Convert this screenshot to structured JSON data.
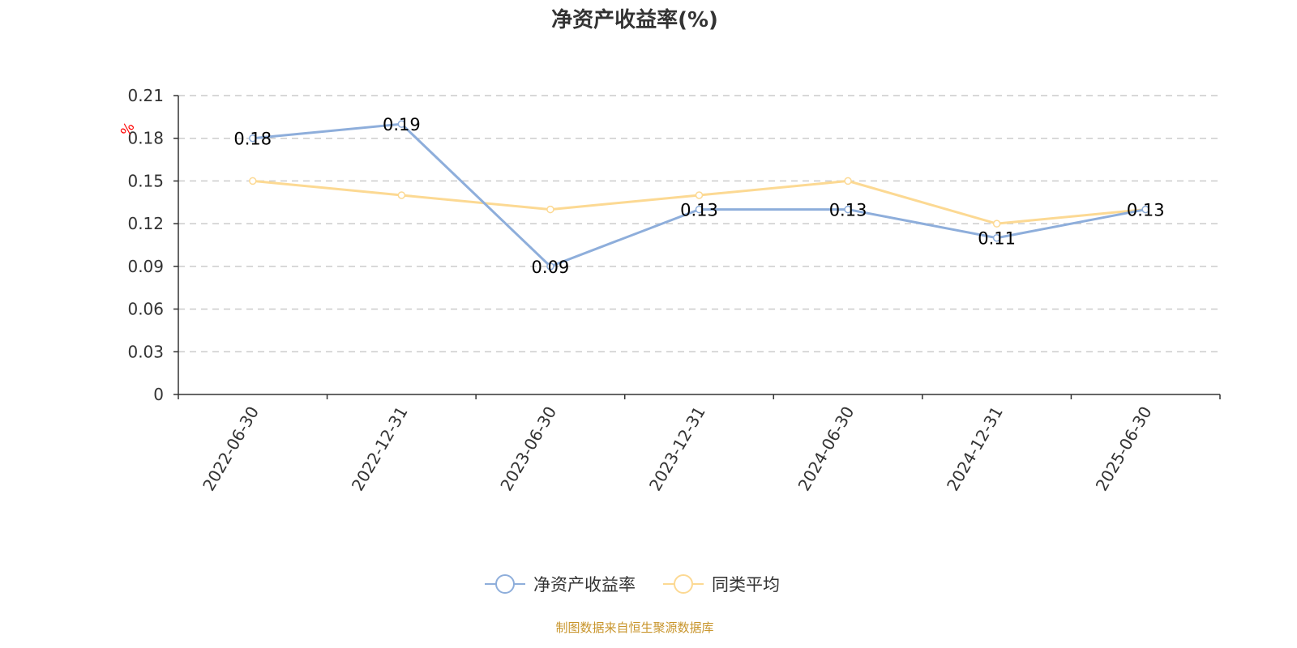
{
  "chart_data": {
    "type": "line",
    "title": "净资产收益率(%)",
    "ylabel": "%",
    "xlabel": "",
    "categories": [
      "2022-06-30",
      "2022-12-31",
      "2023-06-30",
      "2023-12-31",
      "2024-06-30",
      "2024-12-31",
      "2025-06-30"
    ],
    "ylim": [
      0,
      0.21
    ],
    "yticks": [
      "0",
      "0.03",
      "0.06",
      "0.09",
      "0.12",
      "0.15",
      "0.18",
      "0.21"
    ],
    "grid": true,
    "legend_position": "bottom",
    "series": [
      {
        "name": "净资产收益率",
        "color": "#8eaedb",
        "values": [
          0.18,
          0.19,
          0.09,
          0.13,
          0.13,
          0.11,
          0.13
        ],
        "labels": true
      },
      {
        "name": "同类平均",
        "color": "#fcd993",
        "values": [
          0.15,
          0.14,
          0.13,
          0.14,
          0.15,
          0.12,
          0.13
        ],
        "labels": false
      }
    ]
  },
  "footer": "制图数据来自恒生聚源数据库",
  "ylabel_color": "#ff0000",
  "footer_color": "#c8952c"
}
